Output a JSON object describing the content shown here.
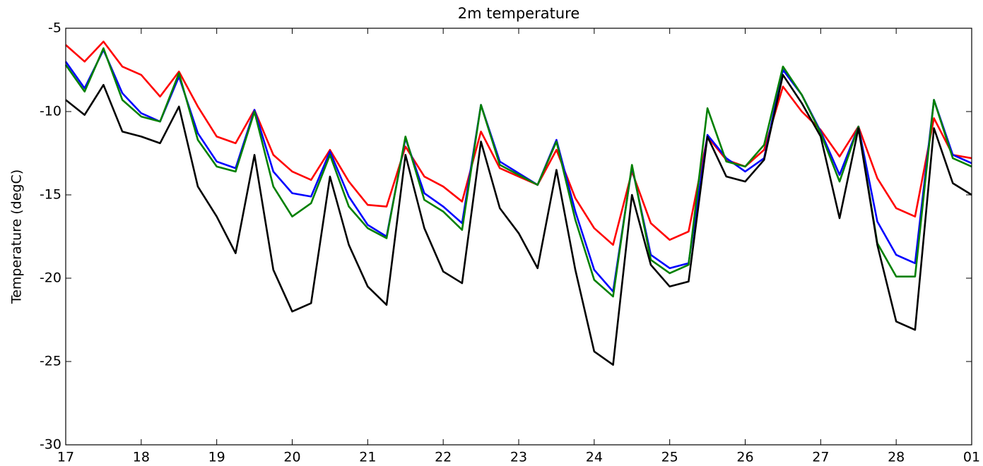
{
  "chart_data": {
    "type": "line",
    "title": "2m temperature",
    "y_label": "Temperature (degC)",
    "x": [
      17,
      17.25,
      17.5,
      17.75,
      18,
      18.25,
      18.5,
      18.75,
      19,
      19.25,
      19.5,
      19.75,
      20,
      20.25,
      20.5,
      20.75,
      21,
      21.25,
      21.5,
      21.75,
      22,
      22.25,
      22.5,
      22.75,
      23,
      23.25,
      23.5,
      23.75,
      24,
      24.25,
      24.5,
      24.75,
      25,
      25.25,
      25.5,
      25.75,
      26,
      26.25,
      26.5,
      26.75,
      27,
      27.25,
      27.5,
      27.75,
      28,
      28.25,
      28.5,
      28.75,
      29
    ],
    "series": [
      {
        "color": "#ff0000",
        "values": [
          -6.0,
          -7.0,
          -5.8,
          -7.3,
          -7.8,
          -9.1,
          -7.6,
          -9.7,
          -11.5,
          -11.9,
          -9.9,
          -12.6,
          -13.6,
          -14.1,
          -12.3,
          -14.2,
          -15.6,
          -15.7,
          -12.1,
          -13.9,
          -14.5,
          -15.4,
          -11.2,
          -13.4,
          -13.9,
          -14.4,
          -12.3,
          -15.2,
          -17.0,
          -18.0,
          -13.6,
          -16.7,
          -17.7,
          -17.2,
          -11.5,
          -12.9,
          -13.3,
          -12.3,
          -8.5,
          -10.0,
          -11.1,
          -12.7,
          -10.9,
          -14.0,
          -15.8,
          -16.3,
          -10.4,
          -12.6,
          -12.8
        ]
      },
      {
        "color": "#0000ff",
        "values": [
          -7.0,
          -8.6,
          -6.3,
          -8.9,
          -10.1,
          -10.6,
          -7.9,
          -11.3,
          -13.0,
          -13.4,
          -9.9,
          -13.6,
          -14.9,
          -15.1,
          -12.4,
          -15.1,
          -16.8,
          -17.5,
          -11.6,
          -14.9,
          -15.7,
          -16.7,
          -9.6,
          -13.0,
          -13.7,
          -14.4,
          -11.7,
          -16.0,
          -19.5,
          -20.8,
          -13.3,
          -18.6,
          -19.4,
          -19.1,
          -11.4,
          -12.8,
          -13.6,
          -12.8,
          -7.5,
          -9.0,
          -11.2,
          -13.8,
          -10.9,
          -16.6,
          -18.6,
          -19.1,
          -9.3,
          -12.6,
          -13.1
        ]
      },
      {
        "color": "#008000",
        "values": [
          -7.2,
          -8.8,
          -6.2,
          -9.3,
          -10.3,
          -10.6,
          -7.7,
          -11.7,
          -13.3,
          -13.6,
          -10.0,
          -14.5,
          -16.3,
          -15.5,
          -12.6,
          -15.7,
          -17.0,
          -17.6,
          -11.5,
          -15.3,
          -16.0,
          -17.1,
          -9.6,
          -13.2,
          -13.8,
          -14.4,
          -11.8,
          -16.5,
          -20.1,
          -21.1,
          -13.2,
          -18.9,
          -19.7,
          -19.2,
          -9.8,
          -13.0,
          -13.3,
          -12.0,
          -7.3,
          -9.0,
          -11.3,
          -14.2,
          -10.9,
          -17.9,
          -19.9,
          -19.9,
          -9.3,
          -12.8,
          -13.3
        ]
      },
      {
        "color": "#000000",
        "values": [
          -9.3,
          -10.2,
          -8.4,
          -11.2,
          -11.5,
          -11.9,
          -9.7,
          -14.5,
          -16.3,
          -18.5,
          -12.6,
          -19.5,
          -22.0,
          -21.5,
          -13.9,
          -18.0,
          -20.5,
          -21.6,
          -12.6,
          -17.0,
          -19.6,
          -20.3,
          -11.8,
          -15.8,
          -17.3,
          -19.4,
          -13.5,
          -19.5,
          -24.4,
          -25.2,
          -15.0,
          -19.2,
          -20.5,
          -20.2,
          -11.5,
          -13.9,
          -14.2,
          -12.9,
          -7.8,
          -9.5,
          -11.5,
          -16.4,
          -11.0,
          -18.0,
          -22.6,
          -23.1,
          -11.0,
          -14.3,
          -15.0
        ]
      }
    ],
    "xlim": [
      17,
      29
    ],
    "xticks": [
      17,
      18,
      19,
      20,
      21,
      22,
      23,
      24,
      25,
      26,
      27,
      28,
      {
        "value": 29,
        "label": "01"
      }
    ],
    "ylim": [
      -30,
      -5
    ],
    "yticks": [
      -30,
      -25,
      -20,
      -15,
      -10,
      -5
    ],
    "grid": false
  }
}
